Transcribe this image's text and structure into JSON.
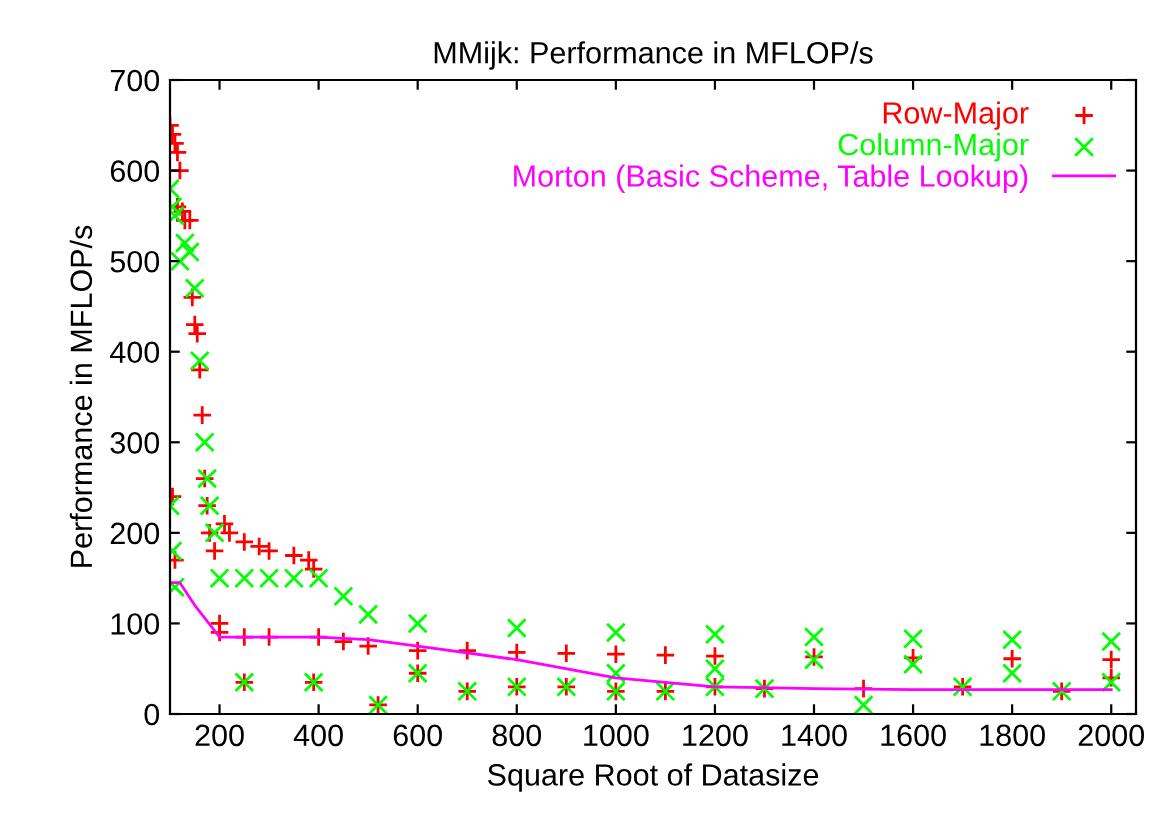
{
  "chart_data": {
    "type": "scatter",
    "title": "MMijk: Performance in MFLOP/s",
    "xlabel": "Square Root of Datasize",
    "ylabel": "Performance in MFLOP/s",
    "xlim": [
      100,
      2050
    ],
    "xticks": [
      200,
      400,
      600,
      800,
      1000,
      1200,
      1400,
      1600,
      1800,
      2000
    ],
    "ylim": [
      0,
      700
    ],
    "yticks": [
      0,
      100,
      200,
      300,
      400,
      500,
      600,
      700
    ],
    "grid": false,
    "legend": "top right",
    "series": [
      {
        "name": "Row-Major",
        "color": "#ff0000",
        "marker": "cross",
        "x": [
          100,
          105,
          110,
          115,
          120,
          105,
          110,
          115,
          125,
          130,
          140,
          145,
          150,
          155,
          160,
          165,
          170,
          175,
          180,
          190,
          200,
          210,
          220,
          250,
          280,
          300,
          350,
          380,
          390,
          200,
          250,
          300,
          400,
          450,
          500,
          600,
          700,
          800,
          900,
          1000,
          1100,
          1200,
          1400,
          1600,
          1800,
          2000,
          250,
          390,
          520,
          600,
          700,
          800,
          900,
          1000,
          1100,
          1200,
          1300,
          1500,
          1700,
          1900,
          2000
        ],
        "values": [
          650,
          640,
          630,
          620,
          600,
          240,
          170,
          560,
          555,
          545,
          545,
          460,
          430,
          420,
          380,
          330,
          260,
          230,
          200,
          180,
          100,
          210,
          200,
          190,
          185,
          180,
          175,
          170,
          160,
          90,
          85,
          85,
          85,
          80,
          75,
          70,
          70,
          68,
          67,
          66,
          65,
          64,
          63,
          62,
          61,
          60,
          35,
          35,
          10,
          45,
          25,
          30,
          30,
          25,
          25,
          30,
          28,
          28,
          30,
          25,
          40
        ]
      },
      {
        "name": "Column-Major",
        "color": "#00ff00",
        "marker": "x",
        "x": [
          100,
          105,
          110,
          120,
          130,
          140,
          150,
          160,
          170,
          175,
          180,
          190,
          200,
          250,
          300,
          350,
          400,
          450,
          500,
          600,
          800,
          1000,
          1200,
          1400,
          1600,
          1800,
          2000,
          100,
          105,
          110,
          1000,
          1200,
          1400,
          1600,
          1800,
          2000,
          250,
          390,
          520,
          600,
          700,
          800,
          900,
          1000,
          1100,
          1200,
          1300,
          1500,
          1700,
          1900
        ],
        "values": [
          580,
          560,
          550,
          500,
          520,
          510,
          470,
          390,
          300,
          260,
          230,
          200,
          150,
          150,
          150,
          150,
          150,
          130,
          110,
          100,
          95,
          90,
          88,
          85,
          83,
          82,
          80,
          230,
          180,
          140,
          45,
          50,
          60,
          55,
          45,
          35,
          35,
          35,
          10,
          45,
          25,
          30,
          30,
          25,
          25,
          30,
          28,
          10,
          30,
          25
        ]
      },
      {
        "name": "Morton (Basic Scheme, Table Lookup)",
        "color": "#ff00ff",
        "type": "line",
        "marker": "none",
        "x": [
          100,
          120,
          150,
          200,
          300,
          400,
          500,
          600,
          800,
          1000,
          1200,
          1400,
          1600,
          1800,
          2000
        ],
        "values": [
          145,
          145,
          120,
          85,
          85,
          85,
          82,
          75,
          60,
          40,
          30,
          28,
          27,
          27,
          27
        ]
      }
    ]
  }
}
